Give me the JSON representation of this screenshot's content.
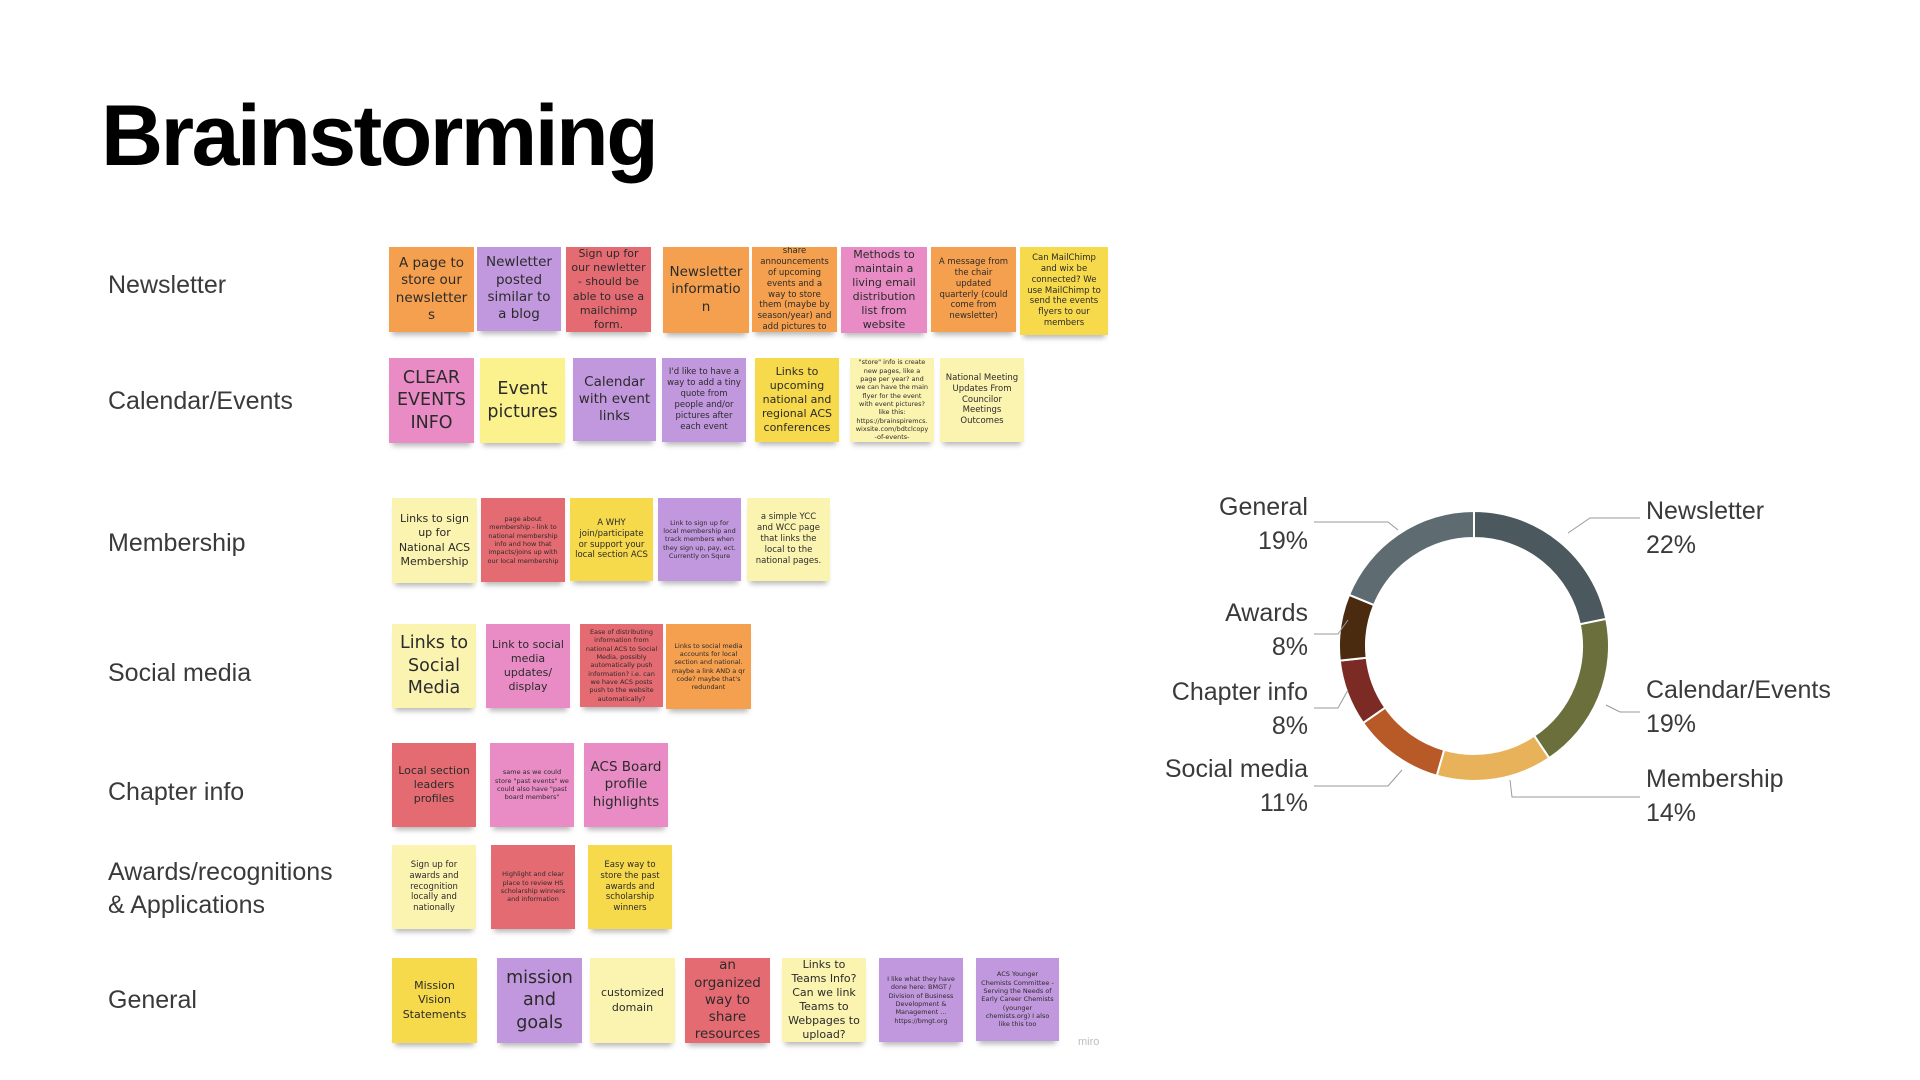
{
  "title": "Brainstorming",
  "rows": [
    {
      "label": "Newsletter",
      "notes": [
        {
          "text": "A page to store our newsletters",
          "color": "#F5A04F",
          "size": "m"
        },
        {
          "text": "Newletter posted similar to a blog",
          "color": "#C198DD",
          "size": "m"
        },
        {
          "text": "Sign up for our newletter - should be able to use a mailchimp form.",
          "color": "#E56B72",
          "size": "s"
        },
        {
          "text": "Newsletter information",
          "color": "#F5A04F",
          "size": "m"
        },
        {
          "text": "Easy way to share announcements of upcoming events and a way to store them (maybe by season/year) and add pictures to past events",
          "color": "#F5A04F",
          "size": "xs"
        },
        {
          "text": "Methods to maintain a living email distribution list from website",
          "color": "#E98CC6",
          "size": "s"
        },
        {
          "text": "A message from the chair updated quarterly (could come from newsletter)",
          "color": "#F5A04F",
          "size": "xs"
        },
        {
          "text": "Can MailChimp and wix be connected? We use MailChimp to send the events flyers to our members",
          "color": "#F7D94C",
          "size": "xs"
        }
      ]
    },
    {
      "label": "Calendar/Events",
      "notes": [
        {
          "text": "CLEAR EVENTS INFO",
          "color": "#E98CC6",
          "size": "l"
        },
        {
          "text": "Event pictures",
          "color": "#FBF28D",
          "size": "l"
        },
        {
          "text": "Calendar with event links",
          "color": "#C198DD",
          "size": "m"
        },
        {
          "text": "I'd like to have a way to add a tiny quote from people and/or pictures after each event",
          "color": "#C198DD",
          "size": "xs"
        },
        {
          "text": "Links to upcoming national and regional ACS conferences",
          "color": "#F7D94C",
          "size": "s"
        },
        {
          "text": "Maybe a way to \"store\" info is create new pages, like a page per year? and we can have the main flyer for the event with event pictures? like this: https://brainspiremcs.wixsite.com/bdtclcopy-of-events-announcements",
          "color": "#FBF3B0",
          "size": "xxs"
        },
        {
          "text": "National Meeting Updates From Councilor Meetings Outcomes",
          "color": "#FBF3B0",
          "size": "xs"
        }
      ]
    },
    {
      "label": "Membership",
      "notes": [
        {
          "text": "Links to sign up for National ACS Membership",
          "color": "#FBF3B0",
          "size": "s"
        },
        {
          "text": "page about membership - link to national membership info and how that impacts/joins up with our local membership",
          "color": "#E56B72",
          "size": "xxs"
        },
        {
          "text": "A WHY join/participate or support your local section ACS",
          "color": "#F7D94C",
          "size": "xs"
        },
        {
          "text": "Link to sign up for local membership and track members when they sign up, pay, ect. Currently on Squre",
          "color": "#C198DD",
          "size": "xxs"
        },
        {
          "text": "a simple YCC and WCC page that links the local to the national pages.",
          "color": "#FBF3B0",
          "size": "xs"
        }
      ]
    },
    {
      "label": "Social media",
      "notes": [
        {
          "text": "Links to Social Media",
          "color": "#FBF3B0",
          "size": "l"
        },
        {
          "text": "Link to social media updates/ display",
          "color": "#E98CC6",
          "size": "s"
        },
        {
          "text": "Ease of distributing information from national ACS to Social Media, possibly automatically push information? i.e. can we have ACS posts push to the website automatically?",
          "color": "#E56B72",
          "size": "xxs"
        },
        {
          "text": "Links to social media accounts for local section and national. maybe a link AND a qr code? maybe that's redundant",
          "color": "#F5A04F",
          "size": "xxs"
        }
      ]
    },
    {
      "label": "Chapter info",
      "notes": [
        {
          "text": "Local section leaders profiles",
          "color": "#E56B72",
          "size": "s"
        },
        {
          "text": "same as we could store \"past events\" we could also have \"past board members\"",
          "color": "#E98CC6",
          "size": "xxs"
        },
        {
          "text": "ACS Board profile highlights",
          "color": "#E98CC6",
          "size": "m"
        }
      ]
    },
    {
      "label": "Awards/recognitions\n& Applications",
      "notes": [
        {
          "text": "Sign up for awards and recognition locally and nationally",
          "color": "#FBF3B0",
          "size": "xs"
        },
        {
          "text": "Highlight and clear place to review HS scholarship winners and information",
          "color": "#E56B72",
          "size": "xxs"
        },
        {
          "text": "Easy way to store the past awards and scholarship winners",
          "color": "#F7D94C",
          "size": "xs"
        }
      ]
    },
    {
      "label": "General",
      "notes": [
        {
          "text": "Mission Vision Statements",
          "color": "#F7D94C",
          "size": "s"
        },
        {
          "text": "mission and goals",
          "color": "#C198DD",
          "size": "l"
        },
        {
          "text": "customized domain",
          "color": "#FBF3B0",
          "size": "s"
        },
        {
          "text": "an organized way to share resources",
          "color": "#E56B72",
          "size": "m"
        },
        {
          "text": "Links to Teams Info? Can we link Teams to Webpages to upload?",
          "color": "#FBF3B0",
          "size": "s"
        },
        {
          "text": "I like what they have done here: BMGT / Division of Business Development & Management ... https://bmgt.org",
          "color": "#C198DD",
          "size": "xxs"
        },
        {
          "text": "ACS Younger Chemists Committee - Serving the Needs of Early Career Chemists (younger chemists.org) I also like this too",
          "color": "#C198DD",
          "size": "xxs"
        }
      ]
    }
  ],
  "watermark": "miro",
  "chart_data": {
    "type": "pie",
    "donut": true,
    "title": "",
    "start": "Newsletter",
    "direction": "clockwise",
    "categories": [
      "Newsletter",
      "Calendar/Events",
      "Membership",
      "Social media",
      "Chapter info",
      "Awards",
      "General"
    ],
    "values": [
      22,
      19,
      14,
      11,
      8,
      8,
      19
    ],
    "value_labels": [
      "22%",
      "19%",
      "14%",
      "11%",
      "8%",
      "8%",
      "19%"
    ],
    "colors": [
      "#4B585E",
      "#6B6F3C",
      "#E8B25A",
      "#B75A28",
      "#7B2B24",
      "#4A2B10",
      "#5E6C72"
    ]
  }
}
